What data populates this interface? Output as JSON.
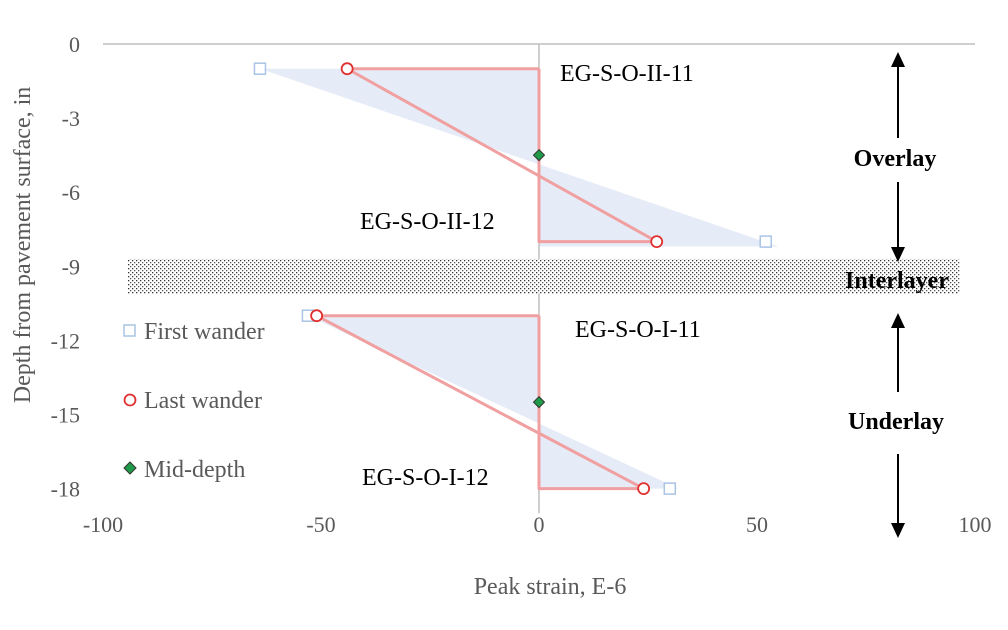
{
  "chart_data": {
    "type": "line",
    "xlabel": "Peak strain, E-6",
    "ylabel": "Depth from pavement surface, in",
    "xlim": [
      -100,
      100
    ],
    "ylim": [
      -19,
      0
    ],
    "x_ticks": [
      -100,
      -50,
      0,
      50,
      100
    ],
    "y_ticks": [
      0,
      -3,
      -6,
      -9,
      -12,
      -15,
      -18
    ],
    "grid": false,
    "legend_position": "left",
    "colors": {
      "first": "#a9c4e4",
      "last": "#e03030",
      "last_line": "#f0a0a0",
      "fill": "#e6ecf7",
      "mid": "#1e9a48",
      "axis": "#bfbfbf"
    },
    "legend": [
      {
        "key": "first",
        "label": "First wander"
      },
      {
        "key": "last",
        "label": "Last wander"
      },
      {
        "key": "mid",
        "label": "Mid-depth"
      }
    ],
    "series": [
      {
        "name": "First wander",
        "points": [
          [
            -64,
            -1
          ],
          [
            52,
            -8
          ],
          [
            -53,
            -11
          ],
          [
            30,
            -18
          ]
        ]
      },
      {
        "name": "Last wander",
        "points": [
          [
            -44,
            -1
          ],
          [
            27,
            -8
          ],
          [
            -51,
            -11
          ],
          [
            24,
            -18
          ]
        ]
      },
      {
        "name": "Mid-depth",
        "points": [
          [
            0,
            -4.5
          ],
          [
            0,
            -14.5
          ]
        ]
      }
    ],
    "profiles": [
      {
        "top_strain": -44,
        "bottom_strain": 27,
        "top_depth": -1,
        "bottom_depth": -8
      },
      {
        "top_strain": -51,
        "bottom_strain": 24,
        "top_depth": -11,
        "bottom_depth": -18
      }
    ],
    "bands": [
      {
        "top_strain": -64,
        "bottom_strain": 55,
        "top_depth": -1,
        "bottom_depth": -8.2
      },
      {
        "top_strain": -53,
        "bottom_strain": 32,
        "top_depth": -11,
        "bottom_depth": -18
      }
    ],
    "interlayer": {
      "top_depth": -8.7,
      "bottom_depth": -10.1
    },
    "annotations": [
      "EG-S-O-II-11",
      "EG-S-O-II-12",
      "EG-S-O-I-11",
      "EG-S-O-I-12"
    ],
    "zones": [
      "Overlay",
      "Interlayer",
      "Underlay"
    ]
  }
}
